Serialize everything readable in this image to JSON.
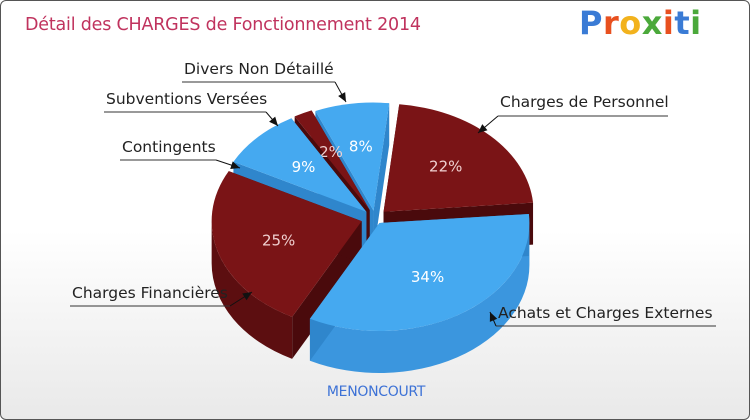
{
  "title": "Détail des CHARGES de Fonctionnement 2014",
  "logo": [
    "P",
    "r",
    "o",
    "x",
    "i",
    "t",
    "i"
  ],
  "logo_colors": [
    "#3a7bd5",
    "#e8501f",
    "#f2b21d",
    "#4ba93b",
    "#e8501f",
    "#3a7bd5",
    "#4ba93b"
  ],
  "footer": "MENONCOURT",
  "colors": {
    "red": "#7a1416",
    "blue": "#45a9f0",
    "title": "#c0335e"
  },
  "chart_data": {
    "type": "pie",
    "title": "Détail des CHARGES de Fonctionnement 2014",
    "slices": [
      {
        "label": "Charges de Personnel",
        "value": 22,
        "pct": "22%",
        "color": "red"
      },
      {
        "label": "Achats et Charges Externes",
        "value": 34,
        "pct": "34%",
        "color": "blue"
      },
      {
        "label": "Charges Financières",
        "value": 25,
        "pct": "25%",
        "color": "red"
      },
      {
        "label": "Contingents",
        "value": 9,
        "pct": "9%",
        "color": "blue"
      },
      {
        "label": "Subventions Versées",
        "value": 2,
        "pct": "2%",
        "color": "red"
      },
      {
        "label": "Divers Non Détaillé",
        "value": 8,
        "pct": "8%",
        "color": "blue"
      }
    ]
  }
}
